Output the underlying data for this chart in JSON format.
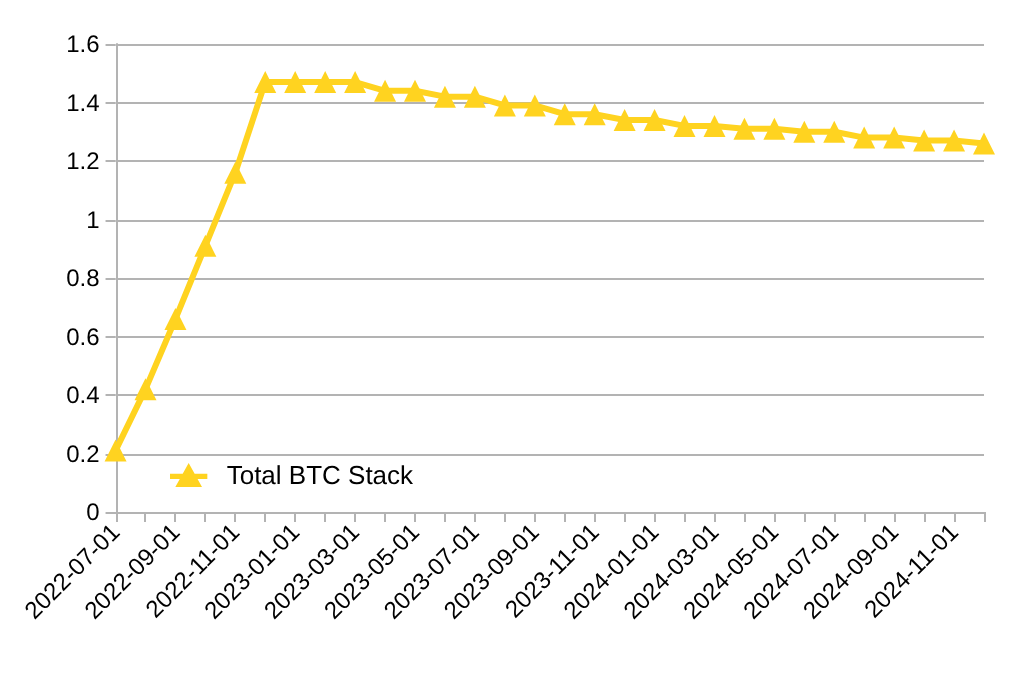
{
  "chart_data": {
    "type": "line",
    "categories": [
      "2022-07-01",
      null,
      "2022-09-01",
      null,
      "2022-11-01",
      null,
      "2023-01-01",
      null,
      "2023-03-01",
      null,
      "2023-05-01",
      null,
      "2023-07-01",
      null,
      "2023-09-01",
      null,
      "2023-11-01",
      null,
      "2024-01-01",
      null,
      "2024-03-01",
      null,
      "2024-05-01",
      null,
      "2024-07-01",
      null,
      "2024-09-01",
      null,
      "2024-11-01",
      null
    ],
    "series": [
      {
        "name": "Total BTC Stack",
        "color": "#ffd320",
        "values": [
          0.21,
          0.42,
          0.66,
          0.91,
          1.16,
          1.47,
          1.47,
          1.47,
          1.47,
          1.44,
          1.44,
          1.42,
          1.42,
          1.39,
          1.39,
          1.36,
          1.36,
          1.34,
          1.34,
          1.32,
          1.32,
          1.31,
          1.31,
          1.3,
          1.3,
          1.28,
          1.28,
          1.27,
          1.27,
          1.26
        ]
      }
    ],
    "ylim": [
      0,
      1.6
    ],
    "yticks": [
      0,
      0.2,
      0.4,
      0.6,
      0.8,
      1,
      1.2,
      1.4,
      1.6
    ],
    "grid": "y",
    "legend": "bottom left",
    "marker": "triangle",
    "line_style": "solid"
  }
}
